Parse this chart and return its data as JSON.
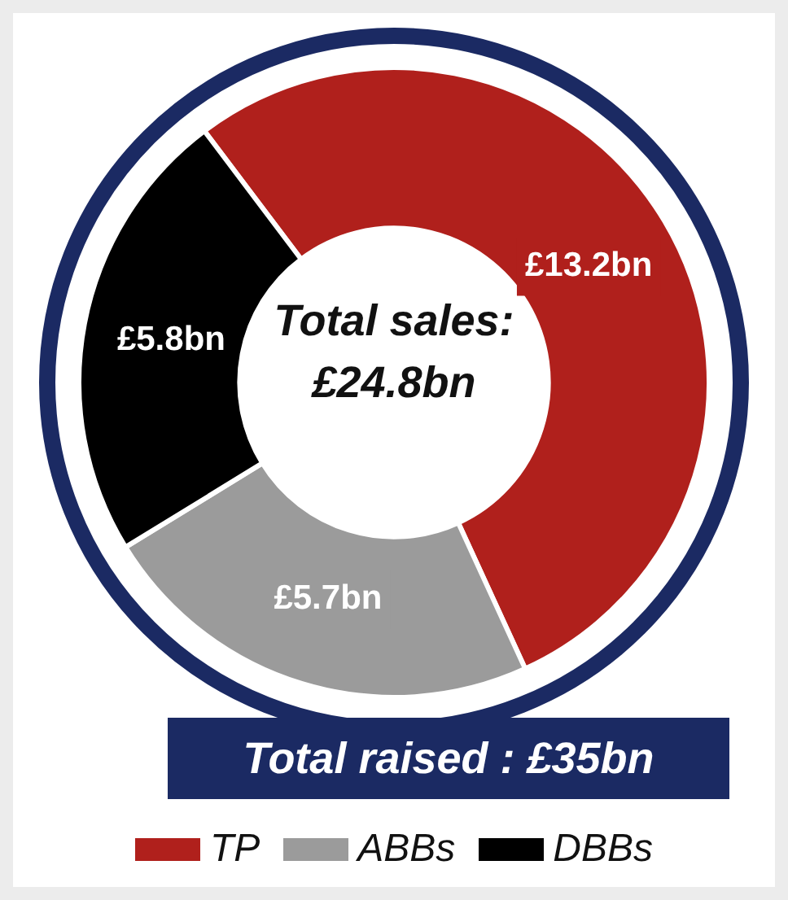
{
  "chart_data": {
    "type": "donut",
    "categories": [
      "TP",
      "ABBs",
      "DBBs"
    ],
    "values": [
      13.2,
      5.7,
      5.8
    ],
    "colors": [
      "#b0201c",
      "#9b9b9b",
      "#000000"
    ],
    "value_labels": [
      "£13.2bn",
      "£5.7bn",
      "£5.8bn"
    ],
    "annotations": [
      "Total sales:",
      "£24.8bn",
      "Total raised : £35bn"
    ],
    "legend": "bottom"
  }
}
